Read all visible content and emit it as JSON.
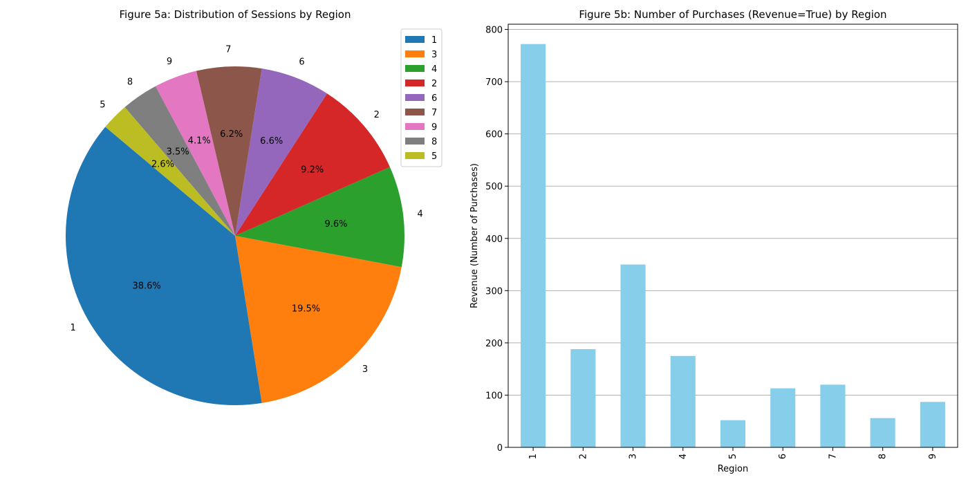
{
  "chart_data": [
    {
      "type": "pie",
      "title": "Figure 5a: Distribution of Sessions by Region",
      "categories": [
        "1",
        "3",
        "4",
        "2",
        "6",
        "7",
        "9",
        "8",
        "5"
      ],
      "values": [
        38.6,
        19.5,
        9.6,
        9.2,
        6.6,
        6.2,
        4.1,
        3.5,
        2.6
      ],
      "pct_labels": [
        "38.6%",
        "19.5%",
        "9.6%",
        "9.2%",
        "6.6%",
        "6.2%",
        "4.1%",
        "3.5%",
        "2.6%"
      ],
      "colors": [
        "#1f77b4",
        "#ff7f0e",
        "#2ca02c",
        "#d62728",
        "#9467bd",
        "#8c564b",
        "#e377c2",
        "#7f7f7f",
        "#bcbd22"
      ],
      "start_angle_deg": 140,
      "direction": "counterclockwise",
      "legend": {
        "placement": "top-right",
        "entries": [
          "1",
          "3",
          "4",
          "2",
          "6",
          "7",
          "9",
          "8",
          "5"
        ]
      }
    },
    {
      "type": "bar",
      "title": "Figure 5b: Number of Purchases (Revenue=True) by Region",
      "xlabel": "Region",
      "ylabel": "Revenue (Number of Purchases)",
      "categories": [
        "1",
        "2",
        "3",
        "4",
        "5",
        "6",
        "7",
        "8",
        "9"
      ],
      "values": [
        772,
        188,
        350,
        175,
        52,
        113,
        120,
        56,
        87
      ],
      "ylim": [
        0,
        810
      ],
      "yticks": [
        "0",
        "100",
        "200",
        "300",
        "400",
        "500",
        "600",
        "700",
        "800"
      ],
      "bar_color": "#87ceeb",
      "grid": "horizontal",
      "xtick_rotation": "vertical"
    }
  ]
}
